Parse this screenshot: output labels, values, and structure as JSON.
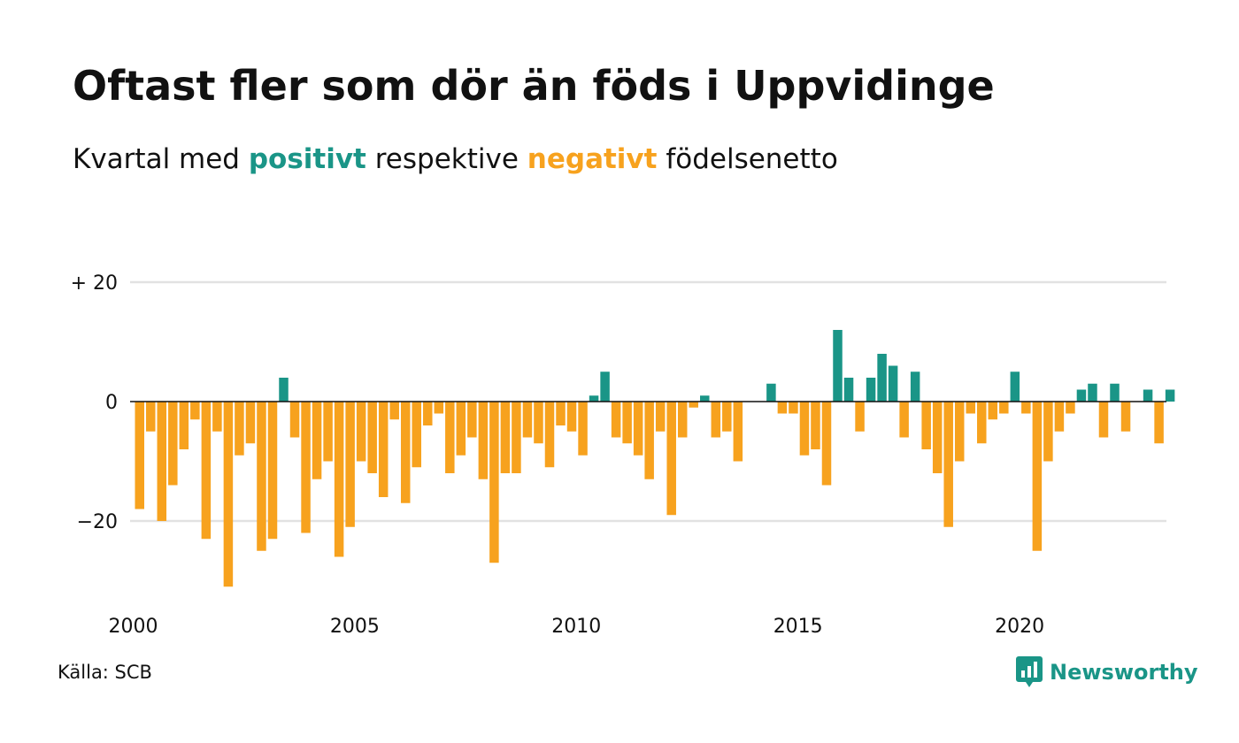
{
  "title": "Oftast fler som dör än föds i Uppvidinge",
  "subtitle": {
    "part1": "Kvartal med ",
    "positive": "positivt",
    "part2": " respektive ",
    "negative": "negativt",
    "part3": " födelsenetto"
  },
  "source": "Källa: SCB",
  "logo": {
    "text": "Newsworthy",
    "icon": "newsworthy-chart-icon"
  },
  "colors": {
    "positive": "#1a9587",
    "negative": "#f7a21e",
    "grid": "#e2e2e2",
    "axis": "#111111"
  },
  "chart_data": {
    "type": "bar",
    "x_start": "2000 Q1",
    "y_ticks": [
      {
        "value": 20,
        "label": "+ 20"
      },
      {
        "value": 0,
        "label": "0"
      },
      {
        "value": -20,
        "label": "−20"
      }
    ],
    "x_ticks": [
      "2000",
      "2005",
      "2010",
      "2015",
      "2020"
    ],
    "ylim": [
      -31,
      20
    ],
    "grid": true,
    "values": [
      -18,
      -5,
      -20,
      -14,
      -8,
      -3,
      -23,
      -5,
      -31,
      -9,
      -7,
      -25,
      -23,
      4,
      -6,
      -22,
      -13,
      -10,
      -26,
      -21,
      -10,
      -12,
      -16,
      -3,
      -17,
      -11,
      -4,
      -2,
      -12,
      -9,
      -6,
      -13,
      -27,
      -12,
      -12,
      -6,
      -7,
      -11,
      -4,
      -5,
      -9,
      1,
      5,
      -6,
      -7,
      -9,
      -13,
      -5,
      -19,
      -6,
      -1,
      1,
      -6,
      -5,
      -10,
      0,
      0,
      3,
      -2,
      -2,
      -9,
      -8,
      -14,
      12,
      4,
      -5,
      4,
      8,
      6,
      -6,
      5,
      -8,
      -12,
      -21,
      -10,
      -2,
      -7,
      -3,
      -2,
      5,
      -2,
      -25,
      -10,
      -5,
      -2,
      2,
      3,
      -6,
      3,
      -5,
      0,
      2,
      -7,
      2
    ]
  }
}
